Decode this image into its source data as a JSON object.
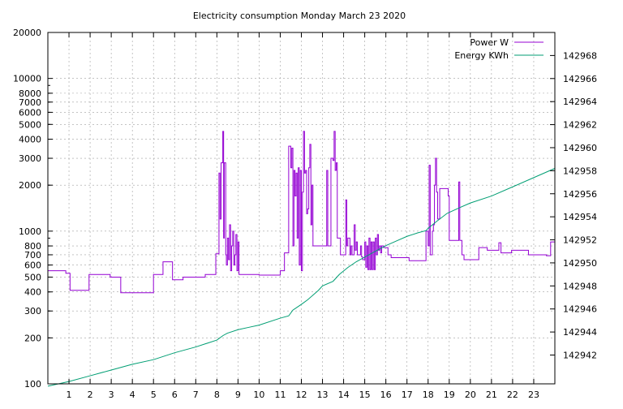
{
  "chart_data": {
    "type": "line",
    "title": "Electricity consumption Monday March 23 2020",
    "xlabel": "",
    "ylabel": "",
    "y2label": "",
    "x_ticks": [
      1,
      2,
      3,
      4,
      5,
      6,
      7,
      8,
      9,
      10,
      11,
      12,
      13,
      14,
      15,
      16,
      17,
      18,
      19,
      20,
      21,
      22,
      23
    ],
    "xlim": [
      0,
      24
    ],
    "y_scale": "log",
    "ylim": [
      100,
      20000
    ],
    "y_ticks": [
      100,
      200,
      300,
      400,
      500,
      600,
      700,
      800,
      1000,
      2000,
      3000,
      4000,
      5000,
      6000,
      7000,
      8000,
      10000,
      20000
    ],
    "y2lim": [
      142939.5,
      142970.0
    ],
    "y2_ticks": [
      142942,
      142944,
      142946,
      142948,
      142950,
      142952,
      142954,
      142956,
      142958,
      142960,
      142962,
      142964,
      142966,
      142968
    ],
    "grid": true,
    "legend_position": "top-right",
    "series": [
      {
        "name": "Power W",
        "axis": "left",
        "color": "#9400d3",
        "step": true,
        "points": [
          [
            0,
            550
          ],
          [
            0.85,
            550
          ],
          [
            0.85,
            530
          ],
          [
            1.05,
            530
          ],
          [
            1.05,
            410
          ],
          [
            1.95,
            410
          ],
          [
            1.95,
            520
          ],
          [
            2.95,
            520
          ],
          [
            2.95,
            500
          ],
          [
            3.45,
            500
          ],
          [
            3.45,
            395
          ],
          [
            5.0,
            395
          ],
          [
            5.0,
            520
          ],
          [
            5.45,
            520
          ],
          [
            5.45,
            630
          ],
          [
            5.9,
            630
          ],
          [
            5.9,
            480
          ],
          [
            6.4,
            480
          ],
          [
            6.4,
            500
          ],
          [
            7.45,
            500
          ],
          [
            7.45,
            520
          ],
          [
            7.95,
            520
          ],
          [
            7.95,
            710
          ],
          [
            8.1,
            710
          ],
          [
            8.1,
            2400
          ],
          [
            8.15,
            1200
          ],
          [
            8.2,
            2800
          ],
          [
            8.28,
            4500
          ],
          [
            8.32,
            900
          ],
          [
            8.35,
            2800
          ],
          [
            8.42,
            700
          ],
          [
            8.45,
            600
          ],
          [
            8.5,
            900
          ],
          [
            8.55,
            650
          ],
          [
            8.6,
            1100
          ],
          [
            8.65,
            550
          ],
          [
            8.7,
            800
          ],
          [
            8.75,
            1000
          ],
          [
            8.8,
            600
          ],
          [
            8.85,
            700
          ],
          [
            8.9,
            950
          ],
          [
            8.95,
            550
          ],
          [
            9.0,
            850
          ],
          [
            9.05,
            520
          ],
          [
            9.1,
            520
          ],
          [
            9.1,
            520
          ],
          [
            10.0,
            520
          ],
          [
            10.0,
            515
          ],
          [
            11.0,
            515
          ],
          [
            11.0,
            550
          ],
          [
            11.2,
            550
          ],
          [
            11.2,
            720
          ],
          [
            11.4,
            720
          ],
          [
            11.4,
            3600
          ],
          [
            11.5,
            2600
          ],
          [
            11.55,
            3500
          ],
          [
            11.6,
            800
          ],
          [
            11.65,
            2500
          ],
          [
            11.7,
            1700
          ],
          [
            11.75,
            2400
          ],
          [
            11.8,
            900
          ],
          [
            11.85,
            2600
          ],
          [
            11.9,
            600
          ],
          [
            11.95,
            2500
          ],
          [
            12.0,
            550
          ],
          [
            12.05,
            1800
          ],
          [
            12.1,
            4500
          ],
          [
            12.15,
            2400
          ],
          [
            12.2,
            2500
          ],
          [
            12.25,
            1300
          ],
          [
            12.3,
            1400
          ],
          [
            12.35,
            2600
          ],
          [
            12.4,
            3700
          ],
          [
            12.45,
            1100
          ],
          [
            12.5,
            2000
          ],
          [
            12.55,
            1100
          ],
          [
            12.55,
            800
          ],
          [
            13.1,
            800
          ],
          [
            13.2,
            2500
          ],
          [
            13.25,
            800
          ],
          [
            13.4,
            3000
          ],
          [
            13.5,
            2900
          ],
          [
            13.55,
            4500
          ],
          [
            13.6,
            2500
          ],
          [
            13.65,
            2800
          ],
          [
            13.7,
            900
          ],
          [
            13.85,
            700
          ],
          [
            14.0,
            700
          ],
          [
            14.1,
            1600
          ],
          [
            14.15,
            800
          ],
          [
            14.2,
            900
          ],
          [
            14.3,
            700
          ],
          [
            14.35,
            800
          ],
          [
            14.4,
            700
          ],
          [
            14.5,
            1100
          ],
          [
            14.55,
            750
          ],
          [
            14.6,
            850
          ],
          [
            14.65,
            700
          ],
          [
            14.7,
            700
          ],
          [
            14.8,
            800
          ],
          [
            14.85,
            680
          ],
          [
            14.9,
            650
          ],
          [
            15.0,
            850
          ],
          [
            15.05,
            580
          ],
          [
            15.1,
            800
          ],
          [
            15.15,
            560
          ],
          [
            15.2,
            900
          ],
          [
            15.25,
            560
          ],
          [
            15.3,
            850
          ],
          [
            15.35,
            560
          ],
          [
            15.4,
            850
          ],
          [
            15.45,
            560
          ],
          [
            15.5,
            900
          ],
          [
            15.55,
            700
          ],
          [
            15.6,
            950
          ],
          [
            15.65,
            750
          ],
          [
            15.7,
            800
          ],
          [
            15.75,
            720
          ],
          [
            15.8,
            800
          ],
          [
            15.9,
            780
          ],
          [
            16.0,
            780
          ],
          [
            16.1,
            700
          ],
          [
            16.25,
            670
          ],
          [
            16.25,
            670
          ],
          [
            17.1,
            670
          ],
          [
            17.1,
            640
          ],
          [
            17.9,
            640
          ],
          [
            17.9,
            1000
          ],
          [
            18.0,
            800
          ],
          [
            18.05,
            2700
          ],
          [
            18.1,
            700
          ],
          [
            18.2,
            1000
          ],
          [
            18.25,
            1100
          ],
          [
            18.3,
            2000
          ],
          [
            18.35,
            3000
          ],
          [
            18.4,
            1800
          ],
          [
            18.45,
            1200
          ],
          [
            18.55,
            1900
          ],
          [
            18.8,
            1900
          ],
          [
            18.95,
            1700
          ],
          [
            19.0,
            870
          ],
          [
            19.4,
            870
          ],
          [
            19.45,
            2100
          ],
          [
            19.5,
            870
          ],
          [
            19.6,
            700
          ],
          [
            19.7,
            650
          ],
          [
            20.4,
            650
          ],
          [
            20.4,
            780
          ],
          [
            20.8,
            780
          ],
          [
            20.8,
            750
          ],
          [
            21.35,
            750
          ],
          [
            21.35,
            840
          ],
          [
            21.45,
            720
          ],
          [
            21.95,
            720
          ],
          [
            21.95,
            750
          ],
          [
            22.75,
            750
          ],
          [
            22.75,
            700
          ],
          [
            23.6,
            700
          ],
          [
            23.6,
            690
          ],
          [
            23.8,
            690
          ],
          [
            23.8,
            850
          ],
          [
            24,
            850
          ]
        ]
      },
      {
        "name": "Energy KWh",
        "axis": "right",
        "color": "#009e73",
        "step": false,
        "points": [
          [
            0,
            142939.3
          ],
          [
            1,
            142939.7
          ],
          [
            2,
            142940.2
          ],
          [
            3,
            142940.7
          ],
          [
            4,
            142941.2
          ],
          [
            5,
            142941.6
          ],
          [
            6,
            142942.2
          ],
          [
            7,
            142942.7
          ],
          [
            8,
            142943.3
          ],
          [
            8.3,
            142943.7
          ],
          [
            8.5,
            142943.9
          ],
          [
            9,
            142944.2
          ],
          [
            9.5,
            142944.4
          ],
          [
            10,
            142944.6
          ],
          [
            11,
            142945.2
          ],
          [
            11.4,
            142945.4
          ],
          [
            11.6,
            142945.9
          ],
          [
            12,
            142946.4
          ],
          [
            12.3,
            142946.8
          ],
          [
            12.8,
            142947.6
          ],
          [
            13,
            142948.0
          ],
          [
            13.5,
            142948.4
          ],
          [
            13.8,
            142949.0
          ],
          [
            14.2,
            142949.6
          ],
          [
            14.6,
            142950.1
          ],
          [
            15,
            142950.5
          ],
          [
            15.5,
            142951.0
          ],
          [
            16,
            142951.5
          ],
          [
            16.5,
            142951.9
          ],
          [
            17,
            142952.3
          ],
          [
            17.5,
            142952.6
          ],
          [
            17.9,
            142952.8
          ],
          [
            18,
            142953.0
          ],
          [
            18.4,
            142953.6
          ],
          [
            18.9,
            142954.3
          ],
          [
            19.5,
            142954.8
          ],
          [
            20,
            142955.2
          ],
          [
            21,
            142955.8
          ],
          [
            22,
            142956.6
          ],
          [
            23,
            142957.4
          ],
          [
            24,
            142958.2
          ]
        ]
      }
    ]
  }
}
